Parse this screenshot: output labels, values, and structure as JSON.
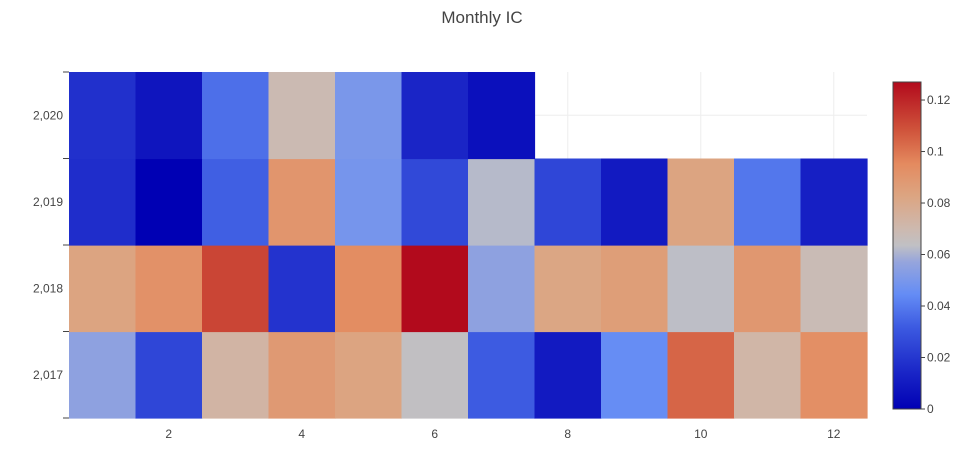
{
  "chart_data": {
    "type": "heatmap",
    "title": "Monthly IC",
    "xlabel": "",
    "ylabel": "",
    "x_categories": [
      1,
      2,
      3,
      4,
      5,
      6,
      7,
      8,
      9,
      10,
      11,
      12
    ],
    "y_categories": [
      2017,
      2018,
      2019,
      2020
    ],
    "x_tick_labels": [
      "2",
      "4",
      "6",
      "8",
      "10",
      "12"
    ],
    "x_tick_values": [
      2,
      4,
      6,
      8,
      10,
      12
    ],
    "y_tick_labels": [
      "2,017",
      "2,018",
      "2,019",
      "2,020"
    ],
    "values": [
      [
        0.055,
        0.025,
        0.073,
        0.088,
        0.083,
        0.064,
        0.032,
        0.01,
        0.045,
        0.104,
        0.072,
        0.093
      ],
      [
        0.083,
        0.092,
        0.112,
        0.019,
        0.094,
        0.127,
        0.055,
        0.082,
        0.086,
        0.063,
        0.089,
        0.068
      ],
      [
        0.017,
        0.0,
        0.033,
        0.09,
        0.049,
        0.026,
        0.062,
        0.025,
        0.01,
        0.083,
        0.039,
        0.012
      ],
      [
        0.018,
        0.008,
        0.037,
        0.069,
        0.05,
        0.014,
        0.006,
        null,
        null,
        null,
        null,
        null
      ]
    ],
    "zmin": 0,
    "zmax": 0.127,
    "colorscale": "coolwarm",
    "colorbar_ticks": [
      "0",
      "0.02",
      "0.04",
      "0.06",
      "0.08",
      "0.1",
      "0.12"
    ],
    "colorbar_tick_values": [
      0,
      0.02,
      0.04,
      0.06,
      0.08,
      0.1,
      0.12
    ],
    "grid": true
  },
  "colors": {
    "background": "#ffffff",
    "title": "#444444",
    "tick_text": "#444444",
    "grid": "#eeeeee",
    "axis_line": "#444444"
  }
}
